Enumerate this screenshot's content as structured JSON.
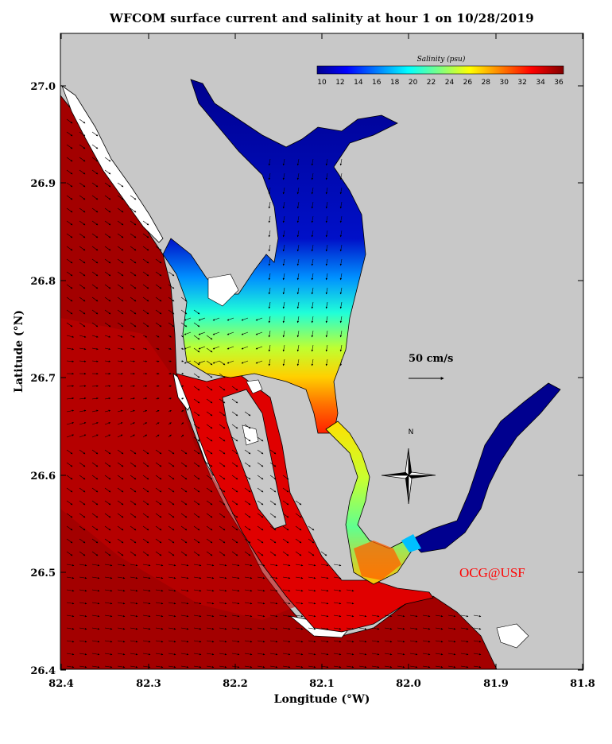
{
  "title": "WFCOM surface current and salinity at hour 1 on 10/28/2019",
  "x_axis": {
    "label": "Longitude (°W)",
    "ticks": [
      "82.4",
      "82.3",
      "82.2",
      "82.1",
      "82.0",
      "81.9",
      "81.8"
    ]
  },
  "y_axis": {
    "label": "Latitude (°N)",
    "ticks": [
      "27.0",
      "26.9",
      "26.8",
      "26.7",
      "26.6",
      "26.5",
      "26.4"
    ]
  },
  "colorbar": {
    "title": "Salinity (psu)",
    "ticks": [
      "10",
      "12",
      "14",
      "16",
      "18",
      "20",
      "22",
      "24",
      "26",
      "28",
      "30",
      "32",
      "34",
      "36"
    ],
    "min": 10,
    "max": 36,
    "colormap": "jet"
  },
  "scale_vector": {
    "label": "50 cm/s"
  },
  "compass": {
    "label": "N"
  },
  "credit": "OCG@USF",
  "colors": {
    "land": "#c8c8c8",
    "ocean_high_salinity": "#a00000",
    "low_salinity": "#00008f",
    "credit": "#ff0000"
  },
  "chart_data": {
    "type": "map",
    "extent": {
      "lon_min_W": 81.8,
      "lon_max_W": 82.4,
      "lat_min_N": 26.4,
      "lat_max_N": 27.05
    },
    "variable": "surface salinity (psu) with surface current vectors",
    "hour": 1,
    "date": "10/28/2019"
  }
}
